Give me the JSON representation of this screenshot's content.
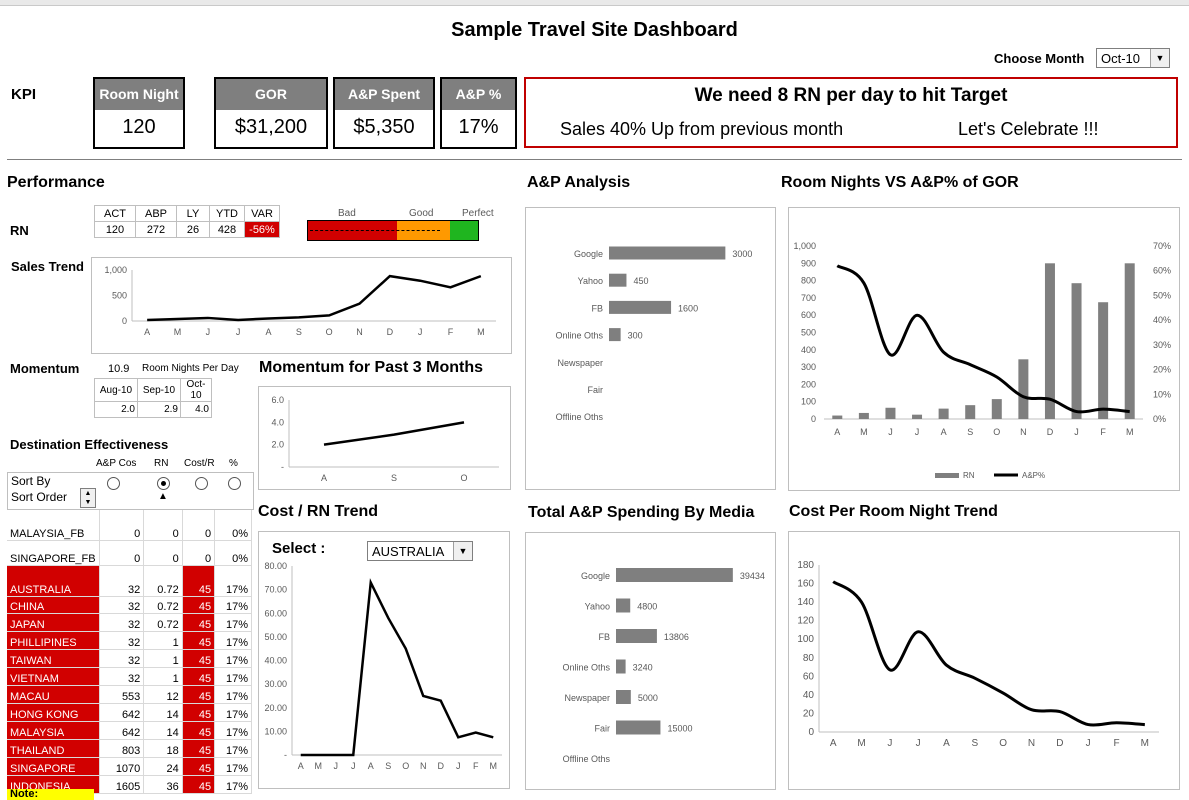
{
  "page": {
    "title": "Sample Travel Site Dashboard",
    "choose_month_label": "Choose Month",
    "month_value": "Oct-10"
  },
  "kpi": {
    "label": "KPI",
    "cards": [
      {
        "label": "Room Night",
        "value": "120"
      },
      {
        "label": "GOR",
        "value": "$31,200"
      },
      {
        "label": "A&P Spent",
        "value": "$5,350"
      },
      {
        "label": "A&P %",
        "value": "17%"
      }
    ],
    "message_title": "We need 8 RN per day to hit Target",
    "message_left": "Sales 40% Up from previous month",
    "message_right": "Let's Celebrate !!!"
  },
  "performance": {
    "title": "Performance",
    "headers": [
      "ACT",
      "ABP",
      "LY",
      "YTD",
      "VAR"
    ],
    "row_label": "RN",
    "values": [
      "120",
      "272",
      "26",
      "428",
      "-56%"
    ],
    "gauge_labels": [
      "Bad",
      "Good",
      "Perfect"
    ],
    "colors": {
      "bad": "#d10000",
      "good": "#ff9900",
      "perfect": "#1fb51f"
    }
  },
  "sales_trend": {
    "title": "Sales Trend"
  },
  "momentum": {
    "label": "Momentum",
    "value": "10.9",
    "caption": "Room Nights Per Day",
    "months": [
      "Aug-10",
      "Sep-10",
      "Oct-10"
    ],
    "values": [
      "2.0",
      "2.9",
      "4.0"
    ],
    "chart_title": "Momentum for Past 3 Months"
  },
  "destination": {
    "title": "Destination Effectiveness",
    "col_headers": [
      "A&P Cos",
      "RN",
      "Cost/R",
      "%"
    ],
    "sort_by": "Sort By",
    "sort_order": "Sort Order",
    "rows": [
      {
        "name": "MALAYSIA_FB",
        "ap": "0",
        "rn": "0",
        "cost": "0",
        "pct": "0%",
        "red": false
      },
      {
        "name": "SINGAPORE_FB",
        "ap": "0",
        "rn": "0",
        "cost": "0",
        "pct": "0%",
        "red": false
      },
      {
        "name": "AUSTRALIA",
        "ap": "32",
        "rn": "0.72",
        "cost": "45",
        "pct": "17%",
        "red": true
      },
      {
        "name": "CHINA",
        "ap": "32",
        "rn": "0.72",
        "cost": "45",
        "pct": "17%",
        "red": true
      },
      {
        "name": "JAPAN",
        "ap": "32",
        "rn": "0.72",
        "cost": "45",
        "pct": "17%",
        "red": true
      },
      {
        "name": "PHILLIPINES",
        "ap": "32",
        "rn": "1",
        "cost": "45",
        "pct": "17%",
        "red": true
      },
      {
        "name": "TAIWAN",
        "ap": "32",
        "rn": "1",
        "cost": "45",
        "pct": "17%",
        "red": true
      },
      {
        "name": "VIETNAM",
        "ap": "32",
        "rn": "1",
        "cost": "45",
        "pct": "17%",
        "red": true
      },
      {
        "name": "MACAU",
        "ap": "553",
        "rn": "12",
        "cost": "45",
        "pct": "17%",
        "red": true
      },
      {
        "name": "HONG KONG",
        "ap": "642",
        "rn": "14",
        "cost": "45",
        "pct": "17%",
        "red": true
      },
      {
        "name": "MALAYSIA",
        "ap": "642",
        "rn": "14",
        "cost": "45",
        "pct": "17%",
        "red": true
      },
      {
        "name": "THAILAND",
        "ap": "803",
        "rn": "18",
        "cost": "45",
        "pct": "17%",
        "red": true
      },
      {
        "name": "SINGAPORE",
        "ap": "1070",
        "rn": "24",
        "cost": "45",
        "pct": "17%",
        "red": true
      },
      {
        "name": "INDONESIA",
        "ap": "1605",
        "rn": "36",
        "cost": "45",
        "pct": "17%",
        "red": true
      }
    ],
    "note": "Note:"
  },
  "ap_analysis": {
    "title": "A&P Analysis"
  },
  "rn_vs_ap": {
    "title": "Room Nights VS A&P% of GOR",
    "legend": [
      "RN",
      "A&P%"
    ]
  },
  "cost_rn": {
    "title": "Cost / RN Trend",
    "select_label": "Select :",
    "select_value": "AUSTRALIA"
  },
  "total_ap": {
    "title": "Total A&P Spending By Media"
  },
  "cost_per_rn": {
    "title": "Cost Per Room Night Trend"
  },
  "chart_data": [
    {
      "id": "sales_trend",
      "type": "line",
      "x": [
        "A",
        "M",
        "J",
        "J",
        "A",
        "S",
        "O",
        "N",
        "D",
        "J",
        "F",
        "M"
      ],
      "values": [
        20,
        40,
        60,
        20,
        50,
        70,
        110,
        340,
        880,
        790,
        660,
        880
      ],
      "ylim": [
        0,
        1000
      ],
      "yticks": [
        "0",
        "500",
        "1,000"
      ]
    },
    {
      "id": "momentum",
      "type": "line",
      "x": [
        "A",
        "S",
        "O"
      ],
      "values": [
        2.0,
        2.9,
        4.0
      ],
      "ylim": [
        0,
        6
      ],
      "yticks": [
        "-",
        "2.0",
        "4.0",
        "6.0"
      ]
    },
    {
      "id": "ap_analysis",
      "type": "bar",
      "categories": [
        "Google",
        "Yahoo",
        "FB",
        "Online Oths",
        "Newspaper",
        "Fair",
        "Offline Oths"
      ],
      "values": [
        3000,
        450,
        1600,
        300,
        null,
        null,
        null
      ]
    },
    {
      "id": "rn_vs_ap",
      "type": "bar",
      "x": [
        "A",
        "M",
        "J",
        "J",
        "A",
        "S",
        "O",
        "N",
        "D",
        "J",
        "F",
        "M"
      ],
      "series": [
        {
          "name": "RN",
          "type": "bar",
          "values": [
            20,
            35,
            65,
            25,
            60,
            80,
            115,
            345,
            900,
            785,
            675,
            900
          ]
        },
        {
          "name": "A&P%",
          "type": "line",
          "values": [
            62,
            55,
            26,
            42,
            27,
            22,
            17,
            9,
            8,
            3,
            4,
            3
          ]
        }
      ],
      "ylim": [
        0,
        1000
      ],
      "yticks": [
        "0",
        "100",
        "200",
        "300",
        "400",
        "500",
        "600",
        "700",
        "800",
        "900",
        "1,000"
      ],
      "y2lim": [
        0,
        70
      ],
      "y2ticks": [
        "0%",
        "10%",
        "20%",
        "30%",
        "40%",
        "50%",
        "60%",
        "70%"
      ]
    },
    {
      "id": "cost_rn",
      "type": "line",
      "x": [
        "A",
        "M",
        "J",
        "J",
        "A",
        "S",
        "O",
        "N",
        "D",
        "J",
        "F",
        "M"
      ],
      "values": [
        0,
        0,
        0,
        0,
        73,
        58,
        45,
        25,
        23,
        7.5,
        9.5,
        7.5
      ],
      "ylim": [
        0,
        80
      ],
      "yticks": [
        "-",
        "10.00",
        "20.00",
        "30.00",
        "40.00",
        "50.00",
        "60.00",
        "70.00",
        "80.00"
      ]
    },
    {
      "id": "total_ap",
      "type": "bar",
      "categories": [
        "Google",
        "Yahoo",
        "FB",
        "Online Oths",
        "Newspaper",
        "Fair",
        "Offline Oths"
      ],
      "values": [
        39434,
        4800,
        13806,
        3240,
        5000,
        15000,
        null
      ]
    },
    {
      "id": "cost_per_rn",
      "type": "line",
      "x": [
        "A",
        "M",
        "J",
        "J",
        "A",
        "S",
        "O",
        "N",
        "D",
        "J",
        "F",
        "M"
      ],
      "values": [
        162,
        140,
        67,
        108,
        72,
        58,
        42,
        24,
        22,
        8,
        10,
        8
      ],
      "ylim": [
        0,
        180
      ],
      "yticks": [
        "0",
        "20",
        "40",
        "60",
        "80",
        "100",
        "120",
        "140",
        "160",
        "180"
      ]
    }
  ]
}
